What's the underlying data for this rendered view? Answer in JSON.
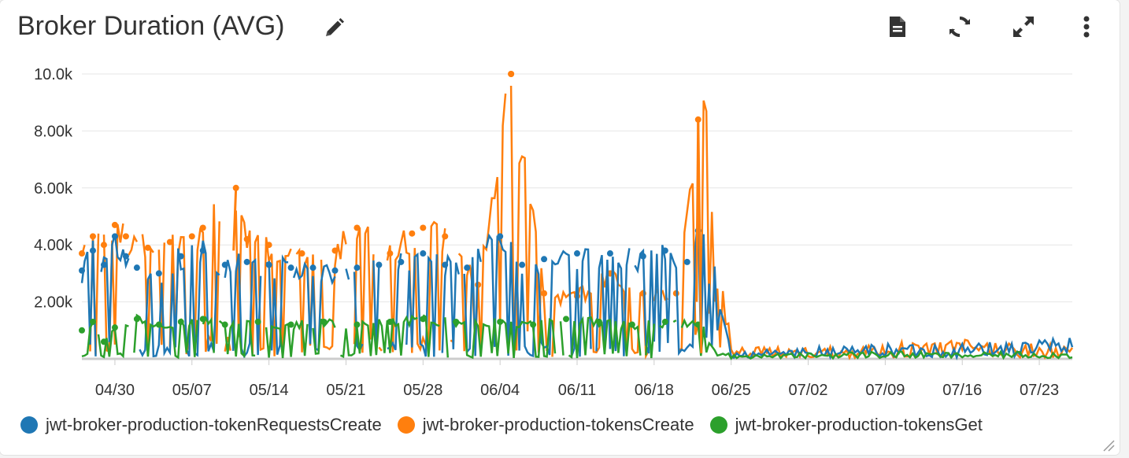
{
  "widget": {
    "title": "Broker Duration (AVG)"
  },
  "toolbar": {
    "icons": [
      "pencil-icon",
      "document-icon",
      "refresh-icon",
      "expand-icon",
      "more-vertical-icon"
    ]
  },
  "colors": {
    "series1": "#1f77b4",
    "series2": "#ff7f0e",
    "series3": "#2ca02c",
    "grid": "#e6e6e6",
    "axis": "#cccccc",
    "text": "#333333"
  },
  "chart_data": {
    "type": "line",
    "title": "Broker Duration (AVG)",
    "xlabel": "",
    "ylabel": "",
    "ylim": [
      0,
      10000
    ],
    "yticks": [
      2000,
      4000,
      6000,
      8000,
      10000
    ],
    "ytick_labels": [
      "2.00k",
      "4.00k",
      "6.00k",
      "8.00k",
      "10.0k"
    ],
    "x_range": [
      "04/27",
      "07/26"
    ],
    "xtick_labels": [
      "04/30",
      "05/07",
      "05/14",
      "05/21",
      "05/28",
      "06/04",
      "06/11",
      "06/18",
      "06/25",
      "07/02",
      "07/09",
      "07/16",
      "07/23"
    ],
    "grid": true,
    "legend_position": "bottom",
    "series": [
      {
        "name": "jwt-broker-production-tokenRequestsCreate",
        "description": "Blue series: values ~3000-4200 through 06/22 with many drops to near 0; near 0-500 from 06/23 on",
        "sample": [
          {
            "x": "04/27",
            "y": 3100
          },
          {
            "x": "04/28",
            "y": 3800
          },
          {
            "x": "04/29",
            "y": 3300
          },
          {
            "x": "04/30",
            "y": 4300
          },
          {
            "x": "05/01",
            "y": 3600
          },
          {
            "x": "05/02",
            "y": 3200
          },
          {
            "x": "05/04",
            "y": 3000
          },
          {
            "x": "05/06",
            "y": 3600
          },
          {
            "x": "05/08",
            "y": 3800
          },
          {
            "x": "05/10",
            "y": 3300
          },
          {
            "x": "05/12",
            "y": 3400
          },
          {
            "x": "05/14",
            "y": 3300
          },
          {
            "x": "05/16",
            "y": 3200
          },
          {
            "x": "05/18",
            "y": 3200
          },
          {
            "x": "05/20",
            "y": 3100
          },
          {
            "x": "05/22",
            "y": 3200
          },
          {
            "x": "05/24",
            "y": 3300
          },
          {
            "x": "05/26",
            "y": 3400
          },
          {
            "x": "05/28",
            "y": 3700
          },
          {
            "x": "05/30",
            "y": 3300
          },
          {
            "x": "06/01",
            "y": 3200
          },
          {
            "x": "06/04",
            "y": 4300
          },
          {
            "x": "06/06",
            "y": 3300
          },
          {
            "x": "06/08",
            "y": 3500
          },
          {
            "x": "06/11",
            "y": 3700
          },
          {
            "x": "06/14",
            "y": 3700
          },
          {
            "x": "06/17",
            "y": 3600
          },
          {
            "x": "06/19",
            "y": 3800
          },
          {
            "x": "06/21",
            "y": 3400
          },
          {
            "x": "06/22",
            "y": 4500
          },
          {
            "x": "06/25",
            "y": 200
          },
          {
            "x": "07/02",
            "y": 300
          },
          {
            "x": "07/09",
            "y": 400
          },
          {
            "x": "07/16",
            "y": 400
          },
          {
            "x": "07/23",
            "y": 500
          },
          {
            "x": "07/26",
            "y": 600
          }
        ]
      },
      {
        "name": "jwt-broker-production-tokensCreate",
        "description": "Orange series: values ~3000-4700 through 06/22 with drops near 0; outlier 10000 on 06/05; spike 8400 on 06/22; near 0-500 after",
        "sample": [
          {
            "x": "04/27",
            "y": 3700
          },
          {
            "x": "04/28",
            "y": 4300
          },
          {
            "x": "04/29",
            "y": 4000
          },
          {
            "x": "04/30",
            "y": 4700
          },
          {
            "x": "05/01",
            "y": 4300
          },
          {
            "x": "05/03",
            "y": 3900
          },
          {
            "x": "05/05",
            "y": 4100
          },
          {
            "x": "05/07",
            "y": 4300
          },
          {
            "x": "05/08",
            "y": 4600
          },
          {
            "x": "05/11",
            "y": 6000
          },
          {
            "x": "05/12",
            "y": 4200
          },
          {
            "x": "05/14",
            "y": 4000
          },
          {
            "x": "05/17",
            "y": 3700
          },
          {
            "x": "05/20",
            "y": 3800
          },
          {
            "x": "05/22",
            "y": 4600
          },
          {
            "x": "05/25",
            "y": 3700
          },
          {
            "x": "05/27",
            "y": 4400
          },
          {
            "x": "05/28",
            "y": 4600
          },
          {
            "x": "05/30",
            "y": 4300
          },
          {
            "x": "06/02",
            "y": 2600
          },
          {
            "x": "06/05",
            "y": 10000
          },
          {
            "x": "06/08",
            "y": 2300
          },
          {
            "x": "06/11",
            "y": 2200
          },
          {
            "x": "06/14",
            "y": 3000
          },
          {
            "x": "06/17",
            "y": 2300
          },
          {
            "x": "06/20",
            "y": 2300
          },
          {
            "x": "06/22",
            "y": 8400
          },
          {
            "x": "06/25",
            "y": 300
          },
          {
            "x": "07/02",
            "y": 300
          },
          {
            "x": "07/09",
            "y": 400
          },
          {
            "x": "07/16",
            "y": 500
          },
          {
            "x": "07/23",
            "y": 400
          },
          {
            "x": "07/26",
            "y": 300
          }
        ]
      },
      {
        "name": "jwt-broker-production-tokensGet",
        "description": "Green series: values ~600-1400 through 06/22 with drops to near 0; near 0-300 after",
        "sample": [
          {
            "x": "04/27",
            "y": 1000
          },
          {
            "x": "04/28",
            "y": 1300
          },
          {
            "x": "04/29",
            "y": 600
          },
          {
            "x": "04/30",
            "y": 1100
          },
          {
            "x": "05/02",
            "y": 1400
          },
          {
            "x": "05/04",
            "y": 1200
          },
          {
            "x": "05/06",
            "y": 1300
          },
          {
            "x": "05/08",
            "y": 1400
          },
          {
            "x": "05/10",
            "y": 1200
          },
          {
            "x": "05/13",
            "y": 1300
          },
          {
            "x": "05/16",
            "y": 1200
          },
          {
            "x": "05/19",
            "y": 1300
          },
          {
            "x": "05/22",
            "y": 1200
          },
          {
            "x": "05/25",
            "y": 1300
          },
          {
            "x": "05/28",
            "y": 1400
          },
          {
            "x": "05/31",
            "y": 1300
          },
          {
            "x": "06/04",
            "y": 1300
          },
          {
            "x": "06/07",
            "y": 1200
          },
          {
            "x": "06/10",
            "y": 1400
          },
          {
            "x": "06/13",
            "y": 1300
          },
          {
            "x": "06/16",
            "y": 1200
          },
          {
            "x": "06/19",
            "y": 1300
          },
          {
            "x": "06/22",
            "y": 1200
          },
          {
            "x": "06/25",
            "y": 100
          },
          {
            "x": "07/02",
            "y": 150
          },
          {
            "x": "07/09",
            "y": 200
          },
          {
            "x": "07/16",
            "y": 150
          },
          {
            "x": "07/23",
            "y": 200
          },
          {
            "x": "07/26",
            "y": 150
          }
        ]
      }
    ]
  }
}
